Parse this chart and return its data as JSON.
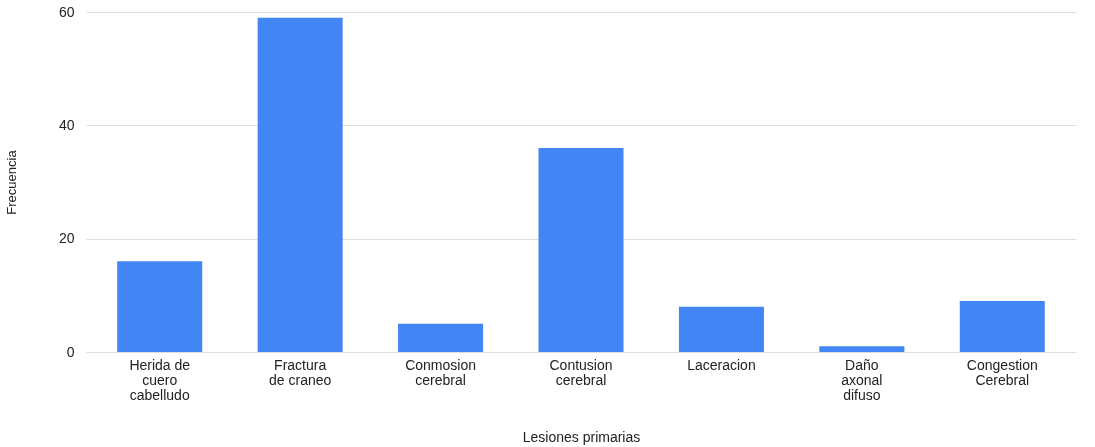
{
  "chart_data": {
    "type": "bar",
    "xlabel": "Lesiones primarias",
    "ylabel": "Frecuencia",
    "categories": [
      "Herida de cuero cabelludo",
      "Fractura de craneo",
      "Conmosion cerebral",
      "Contusion cerebral",
      "Laceracion",
      "Daño axonal difuso",
      "Congestion Cerebral"
    ],
    "values": [
      16,
      59,
      5,
      36,
      8,
      1,
      9
    ],
    "color": "#4285f4",
    "ylim": [
      0,
      60
    ],
    "yticks": [
      0,
      20,
      40,
      60
    ],
    "grid": "y"
  }
}
